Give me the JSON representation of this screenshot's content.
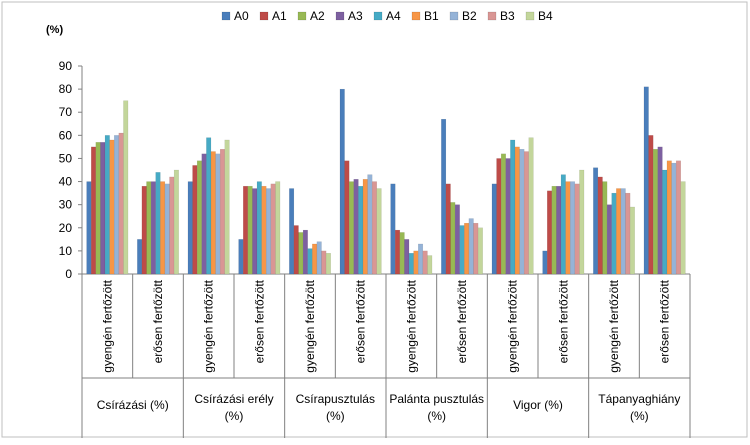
{
  "chart_data": {
    "type": "bar",
    "title": "",
    "ylabel": "(%)",
    "xlabel": "",
    "ylim": [
      0,
      90
    ],
    "yticks": [
      0,
      10,
      20,
      30,
      40,
      50,
      60,
      70,
      80,
      90
    ],
    "grid": false,
    "legend_position": "top",
    "groups": [
      "Csírázási (%)",
      "Csírázási erély (%)",
      "Csírapusztulás (%)",
      "Palánta pusztulás (%)",
      "Vigor (%)",
      "Tápanyaghiány (%)"
    ],
    "subcategories": [
      "gyengén fertőzött",
      "erősen fertőzött"
    ],
    "series": [
      {
        "name": "A0",
        "color": "#4a7ebb",
        "values": [
          40,
          15,
          40,
          15,
          37,
          80,
          39,
          67,
          39,
          10,
          46,
          81
        ]
      },
      {
        "name": "A1",
        "color": "#be4b48",
        "values": [
          55,
          38,
          47,
          38,
          21,
          49,
          19,
          39,
          50,
          36,
          42,
          60
        ]
      },
      {
        "name": "A2",
        "color": "#98b954",
        "values": [
          57,
          40,
          49,
          38,
          18,
          40,
          18,
          31,
          52,
          38,
          40,
          54
        ]
      },
      {
        "name": "A3",
        "color": "#7d60a0",
        "values": [
          57,
          40,
          52,
          37,
          19,
          41,
          15,
          30,
          50,
          38,
          30,
          55
        ]
      },
      {
        "name": "A4",
        "color": "#46aac5",
        "values": [
          60,
          44,
          59,
          40,
          11,
          38,
          9,
          21,
          58,
          43,
          35,
          45
        ]
      },
      {
        "name": "B1",
        "color": "#f79646",
        "values": [
          58,
          40,
          53,
          38,
          13,
          41,
          10,
          22,
          55,
          40,
          37,
          49
        ]
      },
      {
        "name": "B2",
        "color": "#95b3d7",
        "values": [
          60,
          39,
          52,
          37,
          14,
          43,
          13,
          24,
          54,
          40,
          37,
          48
        ]
      },
      {
        "name": "B3",
        "color": "#d99694",
        "values": [
          61,
          42,
          54,
          39,
          10,
          40,
          10,
          22,
          53,
          39,
          35,
          49
        ]
      },
      {
        "name": "B4",
        "color": "#c3d69b",
        "values": [
          75,
          45,
          58,
          40,
          9,
          37,
          8,
          20,
          59,
          45,
          29,
          40
        ]
      }
    ]
  }
}
